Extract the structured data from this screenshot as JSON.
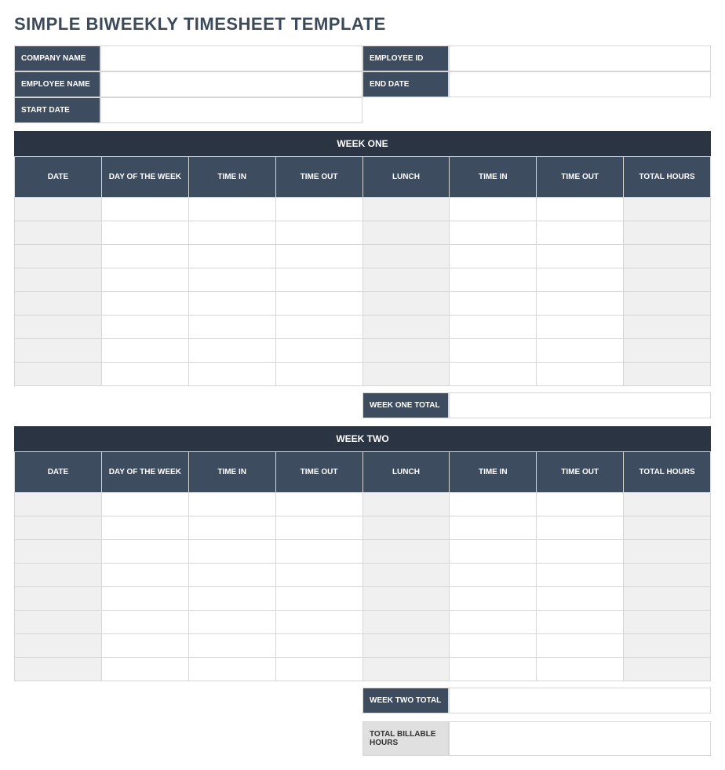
{
  "title": "SIMPLE BIWEEKLY TIMESHEET TEMPLATE",
  "info": {
    "company_name_label": "COMPANY NAME",
    "company_name": "",
    "employee_id_label": "EMPLOYEE ID",
    "employee_id": "",
    "employee_name_label": "EMPLOYEE NAME",
    "employee_name": "",
    "end_date_label": "END DATE",
    "end_date": "",
    "start_date_label": "START DATE",
    "start_date": ""
  },
  "columns": {
    "date": "DATE",
    "day_of_week": "DAY OF THE WEEK",
    "time_in_1": "TIME IN",
    "time_out_1": "TIME OUT",
    "lunch": "LUNCH",
    "time_in_2": "TIME IN",
    "time_out_2": "TIME OUT",
    "total_hours": "TOTAL HOURS"
  },
  "week_one": {
    "title": "WEEK ONE",
    "rows": 8,
    "total_label": "WEEK ONE TOTAL",
    "total_value": ""
  },
  "week_two": {
    "title": "WEEK TWO",
    "rows": 8,
    "total_label": "WEEK TWO TOTAL",
    "total_value": ""
  },
  "billable": {
    "label": "TOTAL BILLABLE HOURS",
    "value": ""
  },
  "style": {
    "header_bg": "#3d4c5f",
    "week_title_bg": "#2a3442",
    "shade_bg": "#f0f0f0",
    "border": "#d6d6d6",
    "title_color": "#3c4a5a"
  }
}
